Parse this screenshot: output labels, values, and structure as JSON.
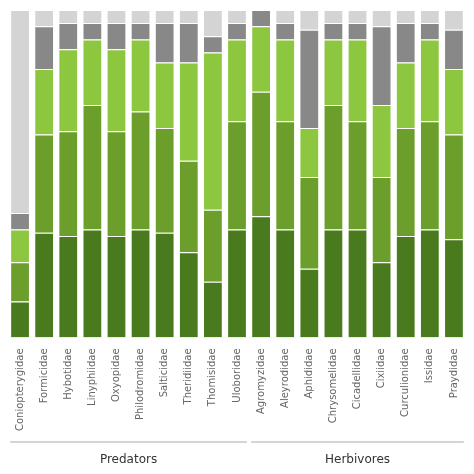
{
  "chart_data": {
    "type": "bar",
    "stacked": true,
    "categories": [
      "Coniopterygidae",
      "Formicidae",
      "Hybotidae",
      "Linyphiidae",
      "Oxyopidae",
      "Philodromidae",
      "Salticidae",
      "Theridiidae",
      "Thomisidae",
      "Uloboridae",
      "Agromyzidae",
      "Aleyrodidae",
      "Aphididae",
      "Chrysomelidae",
      "Cicadellidae",
      "Cixiidae",
      "Curculionidae",
      "Issidae",
      "Praydidae"
    ],
    "series": [
      {
        "color": "#4a7a1e",
        "values": [
          0.11,
          0.32,
          0.31,
          0.33,
          0.31,
          0.33,
          0.32,
          0.26,
          0.17,
          0.33,
          0.37,
          0.33,
          0.21,
          0.33,
          0.33,
          0.23,
          0.31,
          0.33,
          0.3
        ]
      },
      {
        "color": "#6b9e2b",
        "values": [
          0.12,
          0.3,
          0.32,
          0.38,
          0.32,
          0.36,
          0.32,
          0.28,
          0.22,
          0.33,
          0.38,
          0.33,
          0.28,
          0.38,
          0.33,
          0.26,
          0.33,
          0.33,
          0.32
        ]
      },
      {
        "color": "#8dc63f",
        "values": [
          0.1,
          0.2,
          0.25,
          0.2,
          0.25,
          0.22,
          0.2,
          0.3,
          0.48,
          0.25,
          0.2,
          0.25,
          0.15,
          0.2,
          0.25,
          0.22,
          0.2,
          0.25,
          0.2
        ]
      },
      {
        "color": "#888888",
        "values": [
          0.05,
          0.13,
          0.08,
          0.05,
          0.08,
          0.05,
          0.12,
          0.12,
          0.05,
          0.05,
          0.05,
          0.05,
          0.3,
          0.05,
          0.05,
          0.24,
          0.12,
          0.05,
          0.12
        ]
      },
      {
        "color": "#d4d4d4",
        "values": [
          0.62,
          0.05,
          0.04,
          0.04,
          0.04,
          0.04,
          0.04,
          0.04,
          0.08,
          0.04,
          0.0,
          0.04,
          0.06,
          0.04,
          0.04,
          0.05,
          0.04,
          0.04,
          0.06
        ]
      }
    ],
    "ylim": [
      0,
      1
    ],
    "grid": false,
    "tick_labels": "x",
    "annotations": [
      {
        "text": "Predators",
        "span": 10
      },
      {
        "text": "Herbivores",
        "span": 9
      }
    ]
  }
}
